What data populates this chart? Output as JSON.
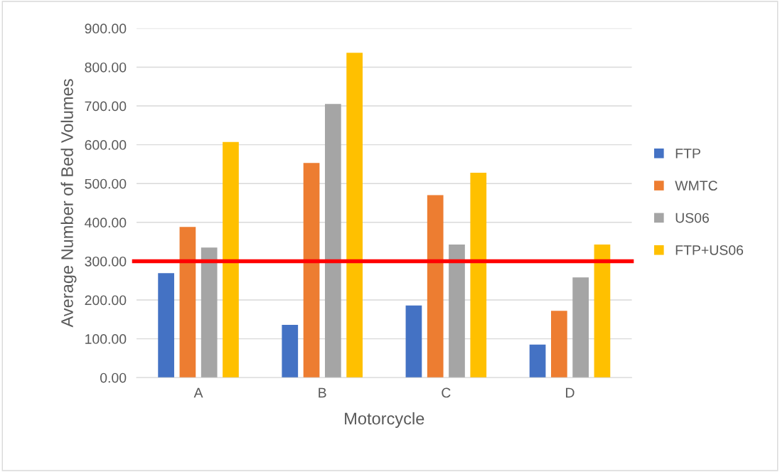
{
  "chart_data": {
    "type": "bar",
    "xlabel": "Motorcycle",
    "ylabel": "Average Number of Bed Volumes",
    "categories": [
      "A",
      "B",
      "C",
      "D"
    ],
    "series": [
      {
        "name": "FTP",
        "color": "#4472c4",
        "values": [
          269,
          136,
          186,
          85
        ]
      },
      {
        "name": "WMTC",
        "color": "#ed7d31",
        "values": [
          388,
          553,
          470,
          172
        ]
      },
      {
        "name": "US06",
        "color": "#a5a5a5",
        "values": [
          335,
          705,
          343,
          258
        ]
      },
      {
        "name": "FTP+US06",
        "color": "#ffc000",
        "values": [
          607,
          837,
          528,
          343
        ]
      }
    ],
    "ylim": [
      0,
      900
    ],
    "yticks": [
      {
        "value": 0,
        "label": "0.00"
      },
      {
        "value": 100,
        "label": "100.00"
      },
      {
        "value": 200,
        "label": "200.00"
      },
      {
        "value": 300,
        "label": "300.00"
      },
      {
        "value": 400,
        "label": "400.00"
      },
      {
        "value": 500,
        "label": "500.00"
      },
      {
        "value": 600,
        "label": "600.00"
      },
      {
        "value": 700,
        "label": "700.00"
      },
      {
        "value": 800,
        "label": "800.00"
      },
      {
        "value": 900,
        "label": "900.00"
      }
    ],
    "ref_lines": [
      {
        "axis": "y",
        "value": 300,
        "color": "#ff0000"
      }
    ],
    "grid": "y",
    "legend": "right"
  }
}
